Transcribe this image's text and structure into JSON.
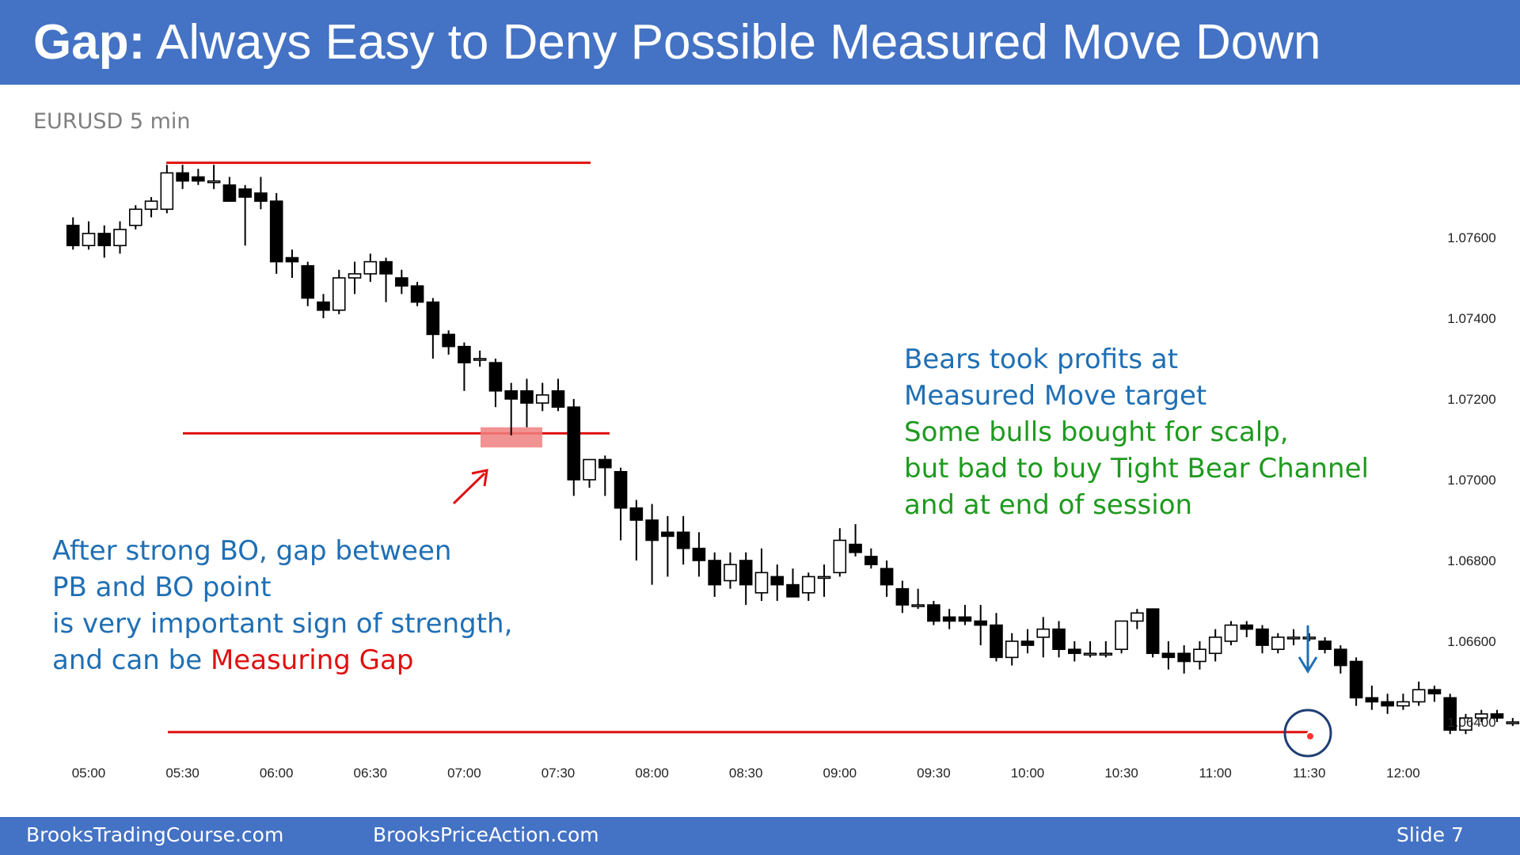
{
  "slide": {
    "title_bold": "Gap:",
    "title_rest": " Always Easy to Deny Possible Measured Move Down",
    "footer_left": "BrooksTradingCourse.com",
    "footer_mid": "BrooksPriceAction.com",
    "footer_right": "Slide  7"
  },
  "annotations": {
    "left_lines": [
      "After strong BO, gap between",
      "PB and BO point",
      "is very important sign of strength,"
    ],
    "left_last_prefix": "and can be ",
    "left_last_red": "Measuring Gap",
    "right_blue": [
      "Bears took profits at",
      "Measured Move target"
    ],
    "right_green": [
      "Some bulls bought for scalp,",
      "but bad to buy Tight Bear Channel",
      "and at end of session"
    ]
  },
  "colors": {
    "header": "#4472c4",
    "level_lines": "#e01010",
    "gap_box": "#f08080",
    "blue_text": "#1f6fb4",
    "green_text": "#1e9a1e",
    "red_text": "#e01010"
  },
  "chart_data": {
    "type": "candlestick",
    "title": "EURUSD 5 min",
    "x_tick_labels": [
      "05:00",
      "05:30",
      "06:00",
      "06:30",
      "07:00",
      "07:30",
      "08:00",
      "08:30",
      "09:00",
      "09:30",
      "10:00",
      "10:30",
      "11:00",
      "11:30",
      "12:00"
    ],
    "y_tick_labels": [
      "1.07600",
      "1.07400",
      "1.07200",
      "1.07000",
      "1.06800",
      "1.06600",
      "1.06400"
    ],
    "ylim": [
      1.063,
      1.079
    ],
    "candles": [
      {
        "time": "04:55",
        "open": 1.0763,
        "high": 1.0765,
        "low": 1.0757,
        "close": 1.0758
      },
      {
        "time": "05:00",
        "open": 1.0758,
        "high": 1.0764,
        "low": 1.0757,
        "close": 1.0761
      },
      {
        "time": "05:05",
        "open": 1.0761,
        "high": 1.0763,
        "low": 1.0755,
        "close": 1.0758
      },
      {
        "time": "05:10",
        "open": 1.0758,
        "high": 1.0764,
        "low": 1.0756,
        "close": 1.0762
      },
      {
        "time": "05:15",
        "open": 1.0763,
        "high": 1.0768,
        "low": 1.0762,
        "close": 1.0767
      },
      {
        "time": "05:20",
        "open": 1.0767,
        "high": 1.077,
        "low": 1.0765,
        "close": 1.0769
      },
      {
        "time": "05:25",
        "open": 1.0767,
        "high": 1.0778,
        "low": 1.0766,
        "close": 1.0776
      },
      {
        "time": "05:30",
        "open": 1.0776,
        "high": 1.0778,
        "low": 1.0772,
        "close": 1.0774
      },
      {
        "time": "05:35",
        "open": 1.0775,
        "high": 1.0777,
        "low": 1.0773,
        "close": 1.0774
      },
      {
        "time": "05:40",
        "open": 1.0774,
        "high": 1.0778,
        "low": 1.0772,
        "close": 1.0774
      },
      {
        "time": "05:45",
        "open": 1.0773,
        "high": 1.0775,
        "low": 1.077,
        "close": 1.0769
      },
      {
        "time": "05:50",
        "open": 1.0772,
        "high": 1.0773,
        "low": 1.0758,
        "close": 1.077
      },
      {
        "time": "05:55",
        "open": 1.0771,
        "high": 1.0775,
        "low": 1.0767,
        "close": 1.0769
      },
      {
        "time": "06:00",
        "open": 1.0769,
        "high": 1.0771,
        "low": 1.0751,
        "close": 1.0754
      },
      {
        "time": "06:05",
        "open": 1.0755,
        "high": 1.0757,
        "low": 1.075,
        "close": 1.0754
      },
      {
        "time": "06:10",
        "open": 1.0753,
        "high": 1.0754,
        "low": 1.0743,
        "close": 1.0745
      },
      {
        "time": "06:15",
        "open": 1.0744,
        "high": 1.0746,
        "low": 1.074,
        "close": 1.0742
      },
      {
        "time": "06:20",
        "open": 1.0742,
        "high": 1.0752,
        "low": 1.0741,
        "close": 1.075
      },
      {
        "time": "06:25",
        "open": 1.075,
        "high": 1.0754,
        "low": 1.0746,
        "close": 1.0751
      },
      {
        "time": "06:30",
        "open": 1.0751,
        "high": 1.0756,
        "low": 1.0749,
        "close": 1.0754
      },
      {
        "time": "06:35",
        "open": 1.0754,
        "high": 1.0755,
        "low": 1.0744,
        "close": 1.0751
      },
      {
        "time": "06:40",
        "open": 1.075,
        "high": 1.0752,
        "low": 1.0746,
        "close": 1.0748
      },
      {
        "time": "06:45",
        "open": 1.0748,
        "high": 1.0749,
        "low": 1.0743,
        "close": 1.0744
      },
      {
        "time": "06:50",
        "open": 1.0744,
        "high": 1.0745,
        "low": 1.073,
        "close": 1.0736
      },
      {
        "time": "06:55",
        "open": 1.0736,
        "high": 1.0737,
        "low": 1.0731,
        "close": 1.0733
      },
      {
        "time": "07:00",
        "open": 1.0733,
        "high": 1.0734,
        "low": 1.0722,
        "close": 1.0729
      },
      {
        "time": "07:05",
        "open": 1.073,
        "high": 1.0732,
        "low": 1.0728,
        "close": 1.073
      },
      {
        "time": "07:10",
        "open": 1.0729,
        "high": 1.073,
        "low": 1.0718,
        "close": 1.0722
      },
      {
        "time": "07:15",
        "open": 1.0722,
        "high": 1.0724,
        "low": 1.0711,
        "close": 1.072
      },
      {
        "time": "07:20",
        "open": 1.0722,
        "high": 1.0725,
        "low": 1.0713,
        "close": 1.0719
      },
      {
        "time": "07:25",
        "open": 1.0719,
        "high": 1.0724,
        "low": 1.0717,
        "close": 1.0721
      },
      {
        "time": "07:30",
        "open": 1.0722,
        "high": 1.0725,
        "low": 1.0717,
        "close": 1.0718
      },
      {
        "time": "07:35",
        "open": 1.0718,
        "high": 1.072,
        "low": 1.0696,
        "close": 1.07
      },
      {
        "time": "07:40",
        "open": 1.07,
        "high": 1.0705,
        "low": 1.0698,
        "close": 1.0705
      },
      {
        "time": "07:45",
        "open": 1.0705,
        "high": 1.0706,
        "low": 1.0696,
        "close": 1.0703
      },
      {
        "time": "07:50",
        "open": 1.0702,
        "high": 1.0703,
        "low": 1.0685,
        "close": 1.0693
      },
      {
        "time": "07:55",
        "open": 1.0693,
        "high": 1.0695,
        "low": 1.068,
        "close": 1.069
      },
      {
        "time": "08:00",
        "open": 1.069,
        "high": 1.0694,
        "low": 1.0674,
        "close": 1.0685
      },
      {
        "time": "08:05",
        "open": 1.0687,
        "high": 1.0691,
        "low": 1.0676,
        "close": 1.0686
      },
      {
        "time": "08:10",
        "open": 1.0687,
        "high": 1.0691,
        "low": 1.0679,
        "close": 1.0683
      },
      {
        "time": "08:15",
        "open": 1.0683,
        "high": 1.0687,
        "low": 1.0676,
        "close": 1.068
      },
      {
        "time": "08:20",
        "open": 1.068,
        "high": 1.0682,
        "low": 1.0671,
        "close": 1.0674
      },
      {
        "time": "08:25",
        "open": 1.0675,
        "high": 1.0682,
        "low": 1.0673,
        "close": 1.0679
      },
      {
        "time": "08:30",
        "open": 1.068,
        "high": 1.0682,
        "low": 1.0669,
        "close": 1.0674
      },
      {
        "time": "08:35",
        "open": 1.0672,
        "high": 1.0683,
        "low": 1.067,
        "close": 1.0677
      },
      {
        "time": "08:40",
        "open": 1.0676,
        "high": 1.0679,
        "low": 1.067,
        "close": 1.0674
      },
      {
        "time": "08:45",
        "open": 1.0674,
        "high": 1.0678,
        "low": 1.0671,
        "close": 1.0671
      },
      {
        "time": "08:50",
        "open": 1.0672,
        "high": 1.0677,
        "low": 1.067,
        "close": 1.0676
      },
      {
        "time": "08:55",
        "open": 1.0676,
        "high": 1.0679,
        "low": 1.0671,
        "close": 1.0676
      },
      {
        "time": "09:00",
        "open": 1.0677,
        "high": 1.0688,
        "low": 1.0676,
        "close": 1.0685
      },
      {
        "time": "09:05",
        "open": 1.0684,
        "high": 1.0689,
        "low": 1.0681,
        "close": 1.0682
      },
      {
        "time": "09:10",
        "open": 1.0681,
        "high": 1.0683,
        "low": 1.0678,
        "close": 1.0679
      },
      {
        "time": "09:15",
        "open": 1.0678,
        "high": 1.068,
        "low": 1.0671,
        "close": 1.0674
      },
      {
        "time": "09:20",
        "open": 1.0673,
        "high": 1.0675,
        "low": 1.0667,
        "close": 1.0669
      },
      {
        "time": "09:25",
        "open": 1.0669,
        "high": 1.0673,
        "low": 1.0668,
        "close": 1.0669
      },
      {
        "time": "09:30",
        "open": 1.0669,
        "high": 1.067,
        "low": 1.0664,
        "close": 1.0665
      },
      {
        "time": "09:35",
        "open": 1.0666,
        "high": 1.0668,
        "low": 1.0663,
        "close": 1.0665
      },
      {
        "time": "09:40",
        "open": 1.0666,
        "high": 1.0669,
        "low": 1.0664,
        "close": 1.0665
      },
      {
        "time": "09:45",
        "open": 1.0665,
        "high": 1.0669,
        "low": 1.0659,
        "close": 1.0664
      },
      {
        "time": "09:50",
        "open": 1.0664,
        "high": 1.0667,
        "low": 1.0655,
        "close": 1.0656
      },
      {
        "time": "09:55",
        "open": 1.0656,
        "high": 1.0662,
        "low": 1.0654,
        "close": 1.066
      },
      {
        "time": "10:00",
        "open": 1.066,
        "high": 1.0663,
        "low": 1.0657,
        "close": 1.0659
      },
      {
        "time": "10:05",
        "open": 1.0661,
        "high": 1.0666,
        "low": 1.0656,
        "close": 1.0663
      },
      {
        "time": "10:10",
        "open": 1.0663,
        "high": 1.0665,
        "low": 1.0656,
        "close": 1.0658
      },
      {
        "time": "10:15",
        "open": 1.0658,
        "high": 1.066,
        "low": 1.0655,
        "close": 1.0657
      },
      {
        "time": "10:20",
        "open": 1.0657,
        "high": 1.066,
        "low": 1.0656,
        "close": 1.0657
      },
      {
        "time": "10:25",
        "open": 1.0657,
        "high": 1.066,
        "low": 1.0656,
        "close": 1.0657
      },
      {
        "time": "10:30",
        "open": 1.0658,
        "high": 1.0665,
        "low": 1.0657,
        "close": 1.0665
      },
      {
        "time": "10:35",
        "open": 1.0665,
        "high": 1.0668,
        "low": 1.0663,
        "close": 1.0667
      },
      {
        "time": "10:40",
        "open": 1.0668,
        "high": 1.0668,
        "low": 1.0656,
        "close": 1.0657
      },
      {
        "time": "10:45",
        "open": 1.0657,
        "high": 1.066,
        "low": 1.0653,
        "close": 1.0656
      },
      {
        "time": "10:50",
        "open": 1.0657,
        "high": 1.0659,
        "low": 1.0652,
        "close": 1.0655
      },
      {
        "time": "10:55",
        "open": 1.0655,
        "high": 1.066,
        "low": 1.0653,
        "close": 1.0658
      },
      {
        "time": "11:00",
        "open": 1.0657,
        "high": 1.0663,
        "low": 1.0655,
        "close": 1.0661
      },
      {
        "time": "11:05",
        "open": 1.066,
        "high": 1.0665,
        "low": 1.0659,
        "close": 1.0664
      },
      {
        "time": "11:10",
        "open": 1.0664,
        "high": 1.0665,
        "low": 1.0661,
        "close": 1.0663
      },
      {
        "time": "11:15",
        "open": 1.0663,
        "high": 1.0664,
        "low": 1.0657,
        "close": 1.0659
      },
      {
        "time": "11:20",
        "open": 1.0658,
        "high": 1.0662,
        "low": 1.0657,
        "close": 1.0661
      },
      {
        "time": "11:25",
        "open": 1.0661,
        "high": 1.0663,
        "low": 1.0659,
        "close": 1.0661
      },
      {
        "time": "11:30",
        "open": 1.0661,
        "high": 1.0662,
        "low": 1.066,
        "close": 1.0661
      },
      {
        "time": "11:35",
        "open": 1.066,
        "high": 1.0661,
        "low": 1.0657,
        "close": 1.0658
      },
      {
        "time": "11:40",
        "open": 1.0658,
        "high": 1.0659,
        "low": 1.0652,
        "close": 1.0654
      },
      {
        "time": "11:45",
        "open": 1.0655,
        "high": 1.0656,
        "low": 1.0644,
        "close": 1.0646
      },
      {
        "time": "11:50",
        "open": 1.0646,
        "high": 1.0649,
        "low": 1.0643,
        "close": 1.0645
      },
      {
        "time": "11:55",
        "open": 1.0645,
        "high": 1.0647,
        "low": 1.0642,
        "close": 1.0644
      },
      {
        "time": "12:00",
        "open": 1.0644,
        "high": 1.0647,
        "low": 1.0643,
        "close": 1.0645
      },
      {
        "time": "12:05",
        "open": 1.0645,
        "high": 1.065,
        "low": 1.0644,
        "close": 1.0648
      },
      {
        "time": "12:10",
        "open": 1.0648,
        "high": 1.0649,
        "low": 1.0645,
        "close": 1.0647
      },
      {
        "time": "12:15",
        "open": 1.0646,
        "high": 1.0647,
        "low": 1.0637,
        "close": 1.0638
      },
      {
        "time": "12:20",
        "open": 1.0638,
        "high": 1.0642,
        "low": 1.0637,
        "close": 1.0641
      },
      {
        "time": "12:25",
        "open": 1.0641,
        "high": 1.0643,
        "low": 1.064,
        "close": 1.0642
      },
      {
        "time": "12:30",
        "open": 1.0642,
        "high": 1.0643,
        "low": 1.064,
        "close": 1.0641
      },
      {
        "time": "12:35",
        "open": 1.064,
        "high": 1.0641,
        "low": 1.0639,
        "close": 1.064
      },
      {
        "time": "12:40",
        "open": 1.064,
        "high": 1.0642,
        "low": 1.0639,
        "close": 1.064
      },
      {
        "time": "12:45",
        "open": 1.064,
        "high": 1.0642,
        "low": 1.0639,
        "close": 1.064
      },
      {
        "time": "12:50",
        "open": 1.064,
        "high": 1.0642,
        "low": 1.0639,
        "close": 1.0641
      },
      {
        "time": "12:55",
        "open": 1.064,
        "high": 1.0644,
        "low": 1.0639,
        "close": 1.0642
      }
    ],
    "levels": [
      {
        "price": 1.07785,
        "from": "05:30",
        "to": "07:00"
      },
      {
        "price": 1.07115,
        "from": "05:30",
        "to": "07:50"
      },
      {
        "price": 1.06375,
        "from": "05:25",
        "to": "11:30"
      }
    ],
    "gap_zone": {
      "from": "07:15",
      "to": "07:45",
      "top": 1.0713,
      "bottom": 1.0708
    },
    "markers": [
      "gap-arrow",
      "target-arrow",
      "target-circle"
    ]
  }
}
